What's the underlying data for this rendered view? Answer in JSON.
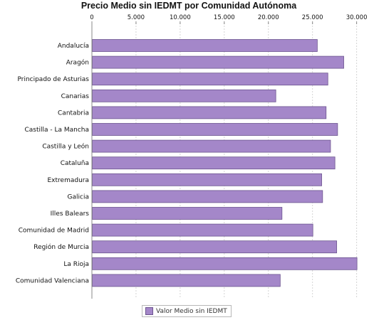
{
  "chart_data": {
    "type": "bar",
    "orientation": "horizontal",
    "title": "Precio Medio sin IEDMT por Comunidad Autónoma",
    "categories": [
      "Andalucía",
      "Aragón",
      "Principado de Asturias",
      "Canarias",
      "Cantabria",
      "Castilla - La Mancha",
      "Castilla y León",
      "Cataluña",
      "Extremadura",
      "Galicia",
      "Illes Balears",
      "Comunidad de Madrid",
      "Región de Murcia",
      "La Rioja",
      "Comunidad Valenciana"
    ],
    "series": [
      {
        "name": "Valor Medio sin IEDMT",
        "values": [
          25500,
          28500,
          26700,
          20800,
          26500,
          27800,
          27000,
          27500,
          26000,
          26100,
          21500,
          25000,
          27700,
          30000,
          21300
        ]
      }
    ],
    "x_ticks": [
      "0",
      "5.000",
      "10.000",
      "15.000",
      "20.000",
      "25.000",
      "30.000"
    ],
    "xlim": [
      0,
      31000
    ],
    "grid": true,
    "legend_position": "bottom",
    "bar_color": "#a487c9",
    "bar_border_color": "#6d558f",
    "grid_color": "#d4d4d4"
  }
}
